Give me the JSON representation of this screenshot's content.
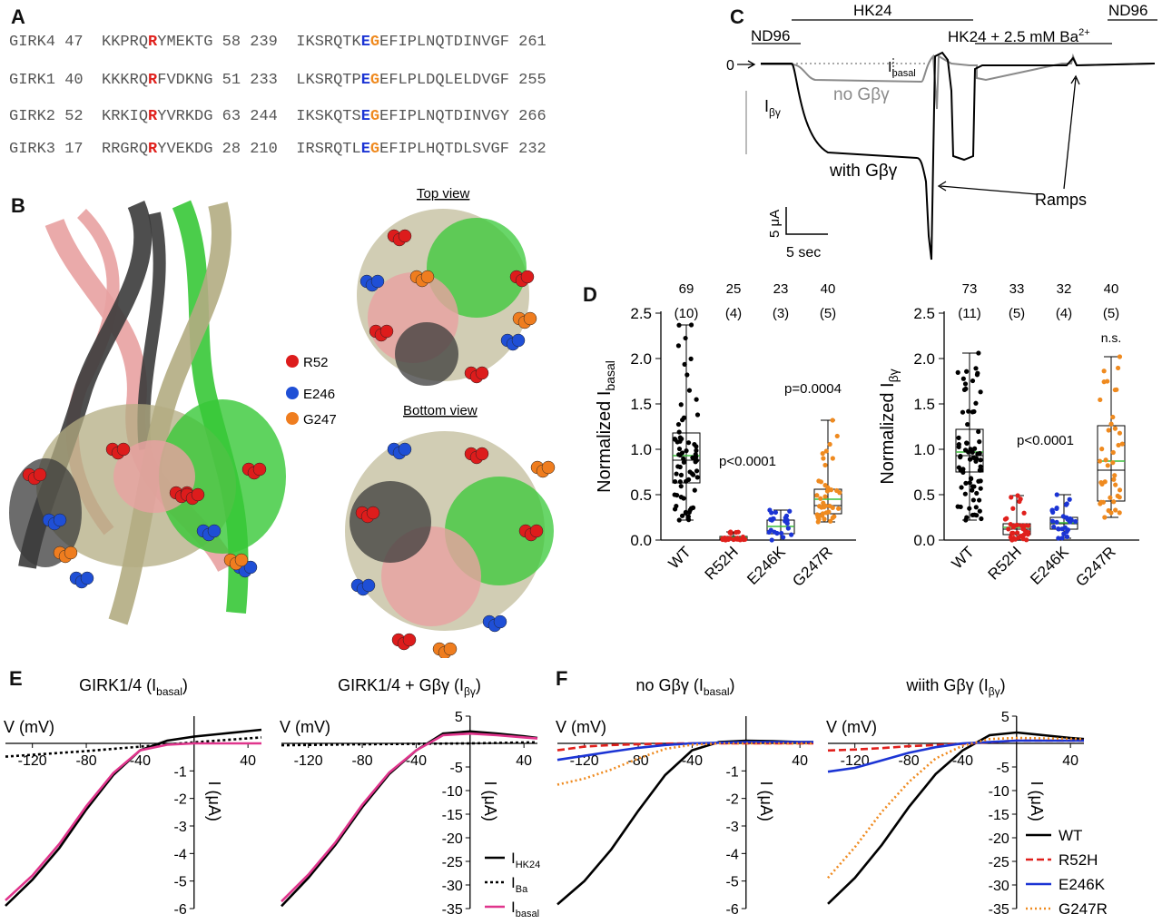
{
  "panels": {
    "a": "A",
    "b": "B",
    "c": "C",
    "d": "D",
    "e": "E",
    "f": "F"
  },
  "alignment": [
    {
      "name": "GIRK4",
      "s1": "47",
      "a": "KKPRQ",
      "r": "R",
      "b": "YMEKTG",
      "e1": "58",
      "s2": "239",
      "c": "IKSRQTK",
      "e": "E",
      "g": "G",
      "d": "EFIPLNQTDINVGF",
      "e2": "261"
    },
    {
      "name": "GIRK1",
      "s1": "40",
      "a": "KKKRQ",
      "r": "R",
      "b": "FVDKNG",
      "e1": "51",
      "s2": "233",
      "c": "LKSRQTP",
      "e": "E",
      "g": "G",
      "d": "EFLPLDQLELDVGF",
      "e2": "255"
    },
    {
      "name": "GIRK2",
      "s1": "52",
      "a": "KRKIQ",
      "r": "R",
      "b": "YVRKDG",
      "e1": "63",
      "s2": "244",
      "c": "IKSKQTS",
      "e": "E",
      "g": "G",
      "d": "EFIPLNQTDINVGY",
      "e2": "266"
    },
    {
      "name": "GIRK3",
      "s1": "17",
      "a": "RRGRQ",
      "r": "R",
      "b": "YVEKDG",
      "e1": "28",
      "s2": "210",
      "c": "IRSRQTL",
      "e": "E",
      "g": "G",
      "d": "EFIPLHQTDLSVGF",
      "e2": "232"
    }
  ],
  "structure": {
    "top_view": "Top view",
    "bottom_view": "Bottom view",
    "legend": [
      {
        "label": "R52",
        "color": "#dd1c1c"
      },
      {
        "label": "E246",
        "color": "#1f4fd6"
      },
      {
        "label": "G247",
        "color": "#ef7d1f"
      }
    ],
    "chain_colors": [
      "#e8a1a1",
      "#3b3b3b",
      "#37c837",
      "#b3ac82"
    ]
  },
  "panel_c": {
    "hk24": "HK24",
    "nd96_left": "ND96",
    "nd96_right": "ND96",
    "ba": "HK24 + 2.5 mM Ba",
    "ba_sup": "2+",
    "zero": "0",
    "ibasal": "I",
    "ibasal_sub": "basal",
    "ibg": "I",
    "ibg_sub": "βγ",
    "no_gbg": "no Gβγ",
    "with_gbg": "with Gβγ",
    "ramps": "Ramps",
    "scale_y": "5 μA",
    "scale_x": "5 sec"
  },
  "panel_d": {
    "left": {
      "ylabel": "Normalized I",
      "ylabel_sub": "basal",
      "ns": [
        "69",
        "25",
        "23",
        "40"
      ],
      "oocytes": [
        "(10)",
        "(4)",
        "(3)",
        "(5)"
      ],
      "annotations": [
        "p<0.0001",
        "p=0.0004"
      ]
    },
    "right": {
      "ylabel": "Normalized I",
      "ylabel_sub": "βγ",
      "ns": [
        "73",
        "33",
        "32",
        "40"
      ],
      "oocytes": [
        "(11)",
        "(5)",
        "(4)",
        "(5)"
      ],
      "annotations": [
        "p<0.0001",
        "n.s."
      ]
    },
    "categories": [
      "WT",
      "R52H",
      "E246K",
      "G247R"
    ],
    "yticks": [
      "0.0",
      "0.5",
      "1.0",
      "1.5",
      "2.0",
      "2.5"
    ]
  },
  "panel_e": {
    "title1": "GIRK1/4 (I",
    "title1_sub": "basal",
    "title2": "GIRK1/4 + Gβγ (I",
    "title2_sub": "βγ",
    "vlabel": "V (mV)",
    "ilabel": "I (μA)",
    "legend": [
      {
        "label": "I",
        "sub": "HK24",
        "color": "#000000",
        "dash": "solid"
      },
      {
        "label": "I",
        "sub": "Ba",
        "color": "#000000",
        "dash": "dot"
      },
      {
        "label": "I",
        "sub": "basal",
        "color": "#e0358c",
        "dash": "solid"
      }
    ]
  },
  "panel_f": {
    "title1": "no Gβγ (I",
    "title1_sub": "basal",
    "title2": "wiith Gβγ (I",
    "title2_sub": "βγ",
    "vlabel": "V (mV)",
    "ilabel": "I (μA)",
    "legend": [
      {
        "label": "WT",
        "color": "#000000"
      },
      {
        "label": "R52H",
        "color": "#e0201c"
      },
      {
        "label": "E246K",
        "color": "#1b34d4"
      },
      {
        "label": "G247R",
        "color": "#ef8a1f"
      }
    ]
  },
  "chart_data": [
    {
      "type": "scatter",
      "title": "",
      "ylabel": "Normalized I basal",
      "categories": [
        "WT",
        "R52H",
        "E246K",
        "G247R"
      ],
      "ylim": [
        0,
        2.5
      ],
      "n": [
        69,
        25,
        23,
        40
      ],
      "oocytes": [
        10,
        4,
        3,
        5
      ],
      "box": [
        {
          "min": 0.22,
          "q1": 0.63,
          "median": 0.88,
          "mean": 0.93,
          "q3": 1.18,
          "max": 2.37
        },
        {
          "min": 0.0,
          "q1": 0.01,
          "median": 0.02,
          "mean": 0.03,
          "q3": 0.04,
          "max": 0.09
        },
        {
          "min": 0.0,
          "q1": 0.07,
          "median": 0.15,
          "mean": 0.15,
          "q3": 0.22,
          "max": 0.33
        },
        {
          "min": 0.2,
          "q1": 0.29,
          "median": 0.38,
          "mean": 0.45,
          "q3": 0.56,
          "max": 1.32
        }
      ],
      "annotations": [
        "p<0.0001",
        "p=0.0004"
      ]
    },
    {
      "type": "scatter",
      "title": "",
      "ylabel": "Normalized I βγ",
      "categories": [
        "WT",
        "R52H",
        "E246K",
        "G247R"
      ],
      "ylim": [
        0,
        2.5
      ],
      "n": [
        73,
        33,
        32,
        40
      ],
      "oocytes": [
        11,
        5,
        4,
        5
      ],
      "box": [
        {
          "min": 0.22,
          "q1": 0.75,
          "median": 0.93,
          "mean": 0.97,
          "q3": 1.22,
          "max": 2.06
        },
        {
          "min": 0.0,
          "q1": 0.06,
          "median": 0.12,
          "mean": 0.14,
          "q3": 0.18,
          "max": 0.49
        },
        {
          "min": 0.02,
          "q1": 0.12,
          "median": 0.18,
          "mean": 0.19,
          "q3": 0.25,
          "max": 0.5
        },
        {
          "min": 0.25,
          "q1": 0.43,
          "median": 0.77,
          "mean": 0.87,
          "q3": 1.26,
          "max": 2.02
        }
      ],
      "annotations": [
        "p<0.0001",
        "n.s."
      ]
    },
    {
      "type": "line",
      "title": "GIRK1/4 (I basal)",
      "xlabel": "V (mV)",
      "ylabel": "I (μA)",
      "xlim": [
        -140,
        50
      ],
      "ylim": [
        -6,
        1
      ],
      "xticks": [
        -120,
        -80,
        -40,
        40
      ],
      "yticks": [
        -1,
        -2,
        -3,
        -4,
        -5,
        -6
      ],
      "series": [
        {
          "name": "I HK24",
          "x": [
            -140,
            -120,
            -100,
            -80,
            -60,
            -40,
            -20,
            0,
            20,
            40,
            50
          ],
          "y": [
            -5.9,
            -4.95,
            -3.8,
            -2.4,
            -1.15,
            -0.25,
            0.1,
            0.25,
            0.35,
            0.45,
            0.5
          ]
        },
        {
          "name": "I Ba",
          "x": [
            -140,
            -80,
            -40,
            0,
            50
          ],
          "y": [
            -0.48,
            -0.28,
            -0.12,
            0.04,
            0.22
          ]
        },
        {
          "name": "I basal",
          "x": [
            -140,
            -120,
            -100,
            -80,
            -60,
            -40,
            -20,
            0,
            20,
            40,
            50
          ],
          "y": [
            -5.7,
            -4.8,
            -3.65,
            -2.28,
            -1.08,
            -0.25,
            -0.05,
            0.0,
            0.0,
            0.0,
            0.0
          ]
        }
      ]
    },
    {
      "type": "line",
      "title": "GIRK1/4 + Gβγ (I βγ)",
      "xlabel": "V (mV)",
      "ylabel": "I (μA)",
      "xlim": [
        -140,
        50
      ],
      "ylim": [
        -35,
        5
      ],
      "xticks": [
        -120,
        -80,
        -40,
        40
      ],
      "yticks": [
        5,
        -5,
        -10,
        -15,
        -20,
        -25,
        -30,
        -35
      ],
      "series": [
        {
          "name": "I HK24",
          "x": [
            -140,
            -120,
            -100,
            -80,
            -60,
            -40,
            -20,
            0,
            20,
            40,
            50
          ],
          "y": [
            -34.5,
            -28.5,
            -21.5,
            -13.5,
            -6.5,
            -1.5,
            1.8,
            2.2,
            1.8,
            1.3,
            1.0
          ]
        },
        {
          "name": "I Ba",
          "x": [
            -140,
            -80,
            -40,
            0,
            50
          ],
          "y": [
            -0.4,
            -0.2,
            -0.1,
            0.0,
            0.2
          ]
        },
        {
          "name": "I basal",
          "x": [
            -140,
            -120,
            -100,
            -80,
            -60,
            -40,
            -20,
            0,
            20,
            40,
            50
          ],
          "y": [
            -33.5,
            -27.8,
            -21,
            -13,
            -6.2,
            -1.5,
            1.5,
            1.8,
            1.5,
            1.1,
            0.9
          ]
        }
      ]
    },
    {
      "type": "line",
      "title": "no Gβγ (I basal)",
      "xlabel": "V (mV)",
      "ylabel": "I (μA)",
      "xlim": [
        -140,
        50
      ],
      "ylim": [
        -6,
        1
      ],
      "xticks": [
        -120,
        -80,
        -40,
        40
      ],
      "yticks": [
        -1,
        -2,
        -3,
        -4,
        -5,
        -6
      ],
      "series": [
        {
          "name": "WT",
          "x": [
            -140,
            -120,
            -100,
            -80,
            -60,
            -40,
            -20,
            0,
            20,
            40,
            50
          ],
          "y": [
            -5.85,
            -5.0,
            -3.85,
            -2.45,
            -1.15,
            -0.25,
            0.05,
            0.1,
            0.08,
            0.05,
            0.05
          ]
        },
        {
          "name": "R52H",
          "x": [
            -140,
            -120,
            -100,
            -80,
            -60,
            -40,
            0,
            50
          ],
          "y": [
            -0.25,
            -0.12,
            -0.06,
            -0.03,
            -0.01,
            0.0,
            0.0,
            0.0
          ]
        },
        {
          "name": "E246K",
          "x": [
            -140,
            -120,
            -100,
            -80,
            -60,
            -40,
            0,
            50
          ],
          "y": [
            -0.6,
            -0.45,
            -0.3,
            -0.16,
            -0.06,
            0.0,
            0.05,
            0.05
          ]
        },
        {
          "name": "G247R",
          "x": [
            -140,
            -120,
            -100,
            -80,
            -60,
            -40,
            -20,
            0,
            50
          ],
          "y": [
            -1.5,
            -1.28,
            -0.95,
            -0.55,
            -0.2,
            -0.05,
            0.0,
            0.0,
            0.0
          ]
        }
      ]
    },
    {
      "type": "line",
      "title": "wiith Gβγ (I βγ)",
      "xlabel": "V (mV)",
      "ylabel": "I (μA)",
      "xlim": [
        -140,
        50
      ],
      "ylim": [
        -35,
        5
      ],
      "xticks": [
        -120,
        -80,
        -40,
        40
      ],
      "yticks": [
        5,
        -5,
        -10,
        -15,
        -20,
        -25,
        -30,
        -35
      ],
      "series": [
        {
          "name": "WT",
          "x": [
            -140,
            -120,
            -100,
            -80,
            -60,
            -40,
            -20,
            0,
            20,
            40,
            50
          ],
          "y": [
            -34,
            -28.5,
            -21.5,
            -13.5,
            -6.5,
            -1.5,
            1.5,
            2.0,
            1.5,
            1.0,
            0.8
          ]
        },
        {
          "name": "R52H",
          "x": [
            -140,
            -120,
            -100,
            -80,
            -40,
            0,
            50
          ],
          "y": [
            -1.5,
            -1.3,
            -1.0,
            -0.6,
            -0.1,
            0.5,
            0.5
          ]
        },
        {
          "name": "E246K",
          "x": [
            -140,
            -120,
            -100,
            -80,
            -60,
            -40,
            0,
            50
          ],
          "y": [
            -6,
            -5.2,
            -3.6,
            -2.0,
            -0.8,
            0.0,
            0.5,
            0.5
          ]
        },
        {
          "name": "G247R",
          "x": [
            -140,
            -120,
            -100,
            -80,
            -60,
            -40,
            -20,
            0,
            50
          ],
          "y": [
            -28.5,
            -22,
            -14.5,
            -8.2,
            -3.2,
            -0.5,
            0.8,
            1.0,
            0.8
          ]
        }
      ]
    }
  ]
}
